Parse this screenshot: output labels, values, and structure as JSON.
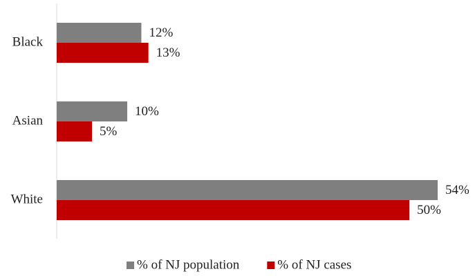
{
  "chart_data": {
    "type": "hbar",
    "categories": [
      "Black",
      "Asian",
      "White"
    ],
    "series": [
      {
        "name": "% of NJ population",
        "color": "#7f7f7f",
        "values": [
          12,
          10,
          54
        ],
        "value_labels": [
          "12%",
          "10%",
          "54%"
        ]
      },
      {
        "name": "% of NJ cases",
        "color": "#c00000",
        "values": [
          13,
          5,
          50
        ],
        "value_labels": [
          "13%",
          "5%",
          "50%"
        ]
      }
    ],
    "legend": "bottom"
  }
}
